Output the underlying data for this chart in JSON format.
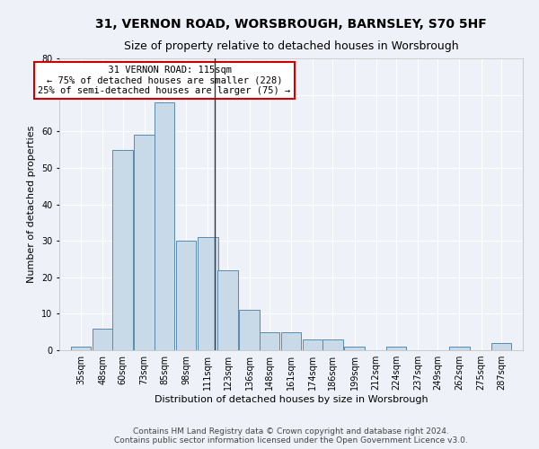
{
  "title1": "31, VERNON ROAD, WORSBROUGH, BARNSLEY, S70 5HF",
  "title2": "Size of property relative to detached houses in Worsbrough",
  "xlabel": "Distribution of detached houses by size in Worsbrough",
  "ylabel": "Number of detached properties",
  "footnote1": "Contains HM Land Registry data © Crown copyright and database right 2024.",
  "footnote2": "Contains public sector information licensed under the Open Government Licence v3.0.",
  "annotation_line1": "  31 VERNON ROAD: 115sqm",
  "annotation_line2": "← 75% of detached houses are smaller (228)",
  "annotation_line3": "25% of semi-detached houses are larger (75) →",
  "bar_color": "#c8d9e8",
  "bar_edge_color": "#5a8ab0",
  "vline_color": "#333333",
  "vline_x": 115,
  "annotation_box_edge": "#cc0000",
  "background_color": "#eef2f8",
  "categories": [
    35,
    48,
    60,
    73,
    85,
    98,
    111,
    123,
    136,
    148,
    161,
    174,
    186,
    199,
    212,
    224,
    237,
    249,
    262,
    275,
    287
  ],
  "values": [
    1,
    6,
    55,
    59,
    68,
    30,
    31,
    22,
    11,
    5,
    5,
    3,
    3,
    1,
    0,
    1,
    0,
    0,
    1,
    0,
    2
  ],
  "bin_width": 13,
  "ylim": [
    0,
    80
  ],
  "yticks": [
    0,
    10,
    20,
    30,
    40,
    50,
    60,
    70,
    80
  ],
  "grid_color": "#ffffff",
  "title_fontsize": 10,
  "subtitle_fontsize": 9,
  "axis_label_fontsize": 8,
  "tick_fontsize": 7,
  "annotation_fontsize": 7.5,
  "footnote_fontsize": 6.5
}
